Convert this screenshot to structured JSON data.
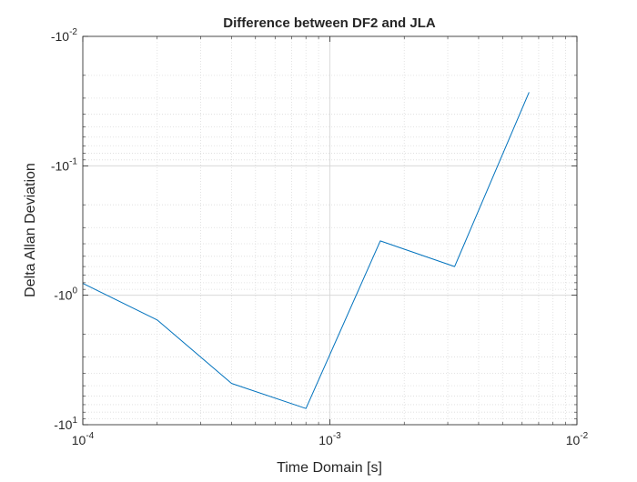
{
  "chart_data": {
    "type": "line",
    "title": "Difference between DF2 and JLA",
    "xlabel": "Time Domain [s]",
    "ylabel": "Delta Allan Deviation",
    "x_scale": "log",
    "y_scale": "log-negative",
    "xlim": [
      0.0001,
      0.01
    ],
    "ylim": [
      -10,
      -0.01
    ],
    "x_ticks": [
      {
        "value": 0.0001,
        "base": "10",
        "exp": "-4"
      },
      {
        "value": 0.001,
        "base": "10",
        "exp": "-3"
      },
      {
        "value": 0.01,
        "base": "10",
        "exp": "-2"
      }
    ],
    "y_ticks": [
      {
        "value": -0.01,
        "base": "-10",
        "exp": "-2"
      },
      {
        "value": -0.1,
        "base": "-10",
        "exp": "-1"
      },
      {
        "value": -1,
        "base": "-10",
        "exp": "0"
      },
      {
        "value": -10,
        "base": "-10",
        "exp": "1"
      }
    ],
    "grid": true,
    "minor_grid": true,
    "line_color": "#0072BD",
    "series": [
      {
        "x": [
          0.0001,
          0.0002,
          0.0004,
          0.0008,
          0.0016,
          0.0032,
          0.0064
        ],
        "y": [
          -0.81,
          -1.55,
          -4.8,
          -7.5,
          -0.38,
          -0.6,
          -0.027
        ]
      }
    ]
  }
}
